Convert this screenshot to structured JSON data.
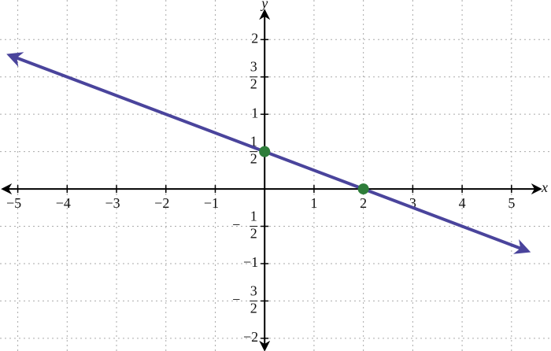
{
  "chart_data": {
    "type": "line",
    "x_label": "x",
    "y_label": "y",
    "xlim": [
      -5.36,
      5.8
    ],
    "ylim": [
      -2.17,
      2.53
    ],
    "xticks": [
      {
        "value": -5,
        "label": "−5"
      },
      {
        "value": -4,
        "label": "−4"
      },
      {
        "value": -3,
        "label": "−3"
      },
      {
        "value": -2,
        "label": "−2"
      },
      {
        "value": -1,
        "label": "−1"
      },
      1,
      2,
      3,
      4,
      5
    ],
    "yticks": [
      {
        "value": -2,
        "label": "−2"
      },
      {
        "value": -1.5,
        "label": "−3/2"
      },
      {
        "value": -1,
        "label": "−1"
      },
      {
        "value": -0.5,
        "label": "−1/2"
      },
      {
        "value": 0.5,
        "label": "1/2"
      },
      1,
      {
        "value": 1.5,
        "label": "3/2"
      },
      2
    ],
    "grid": true,
    "series": [
      {
        "type": "line",
        "color": "#4a449c",
        "x": [
          -5.14,
          5.3
        ],
        "values": [
          1.785,
          -0.825
        ]
      },
      {
        "type": "scatter",
        "color": "#2e7d3a",
        "x": [
          0,
          2
        ],
        "values": [
          0.5,
          0
        ]
      }
    ]
  }
}
